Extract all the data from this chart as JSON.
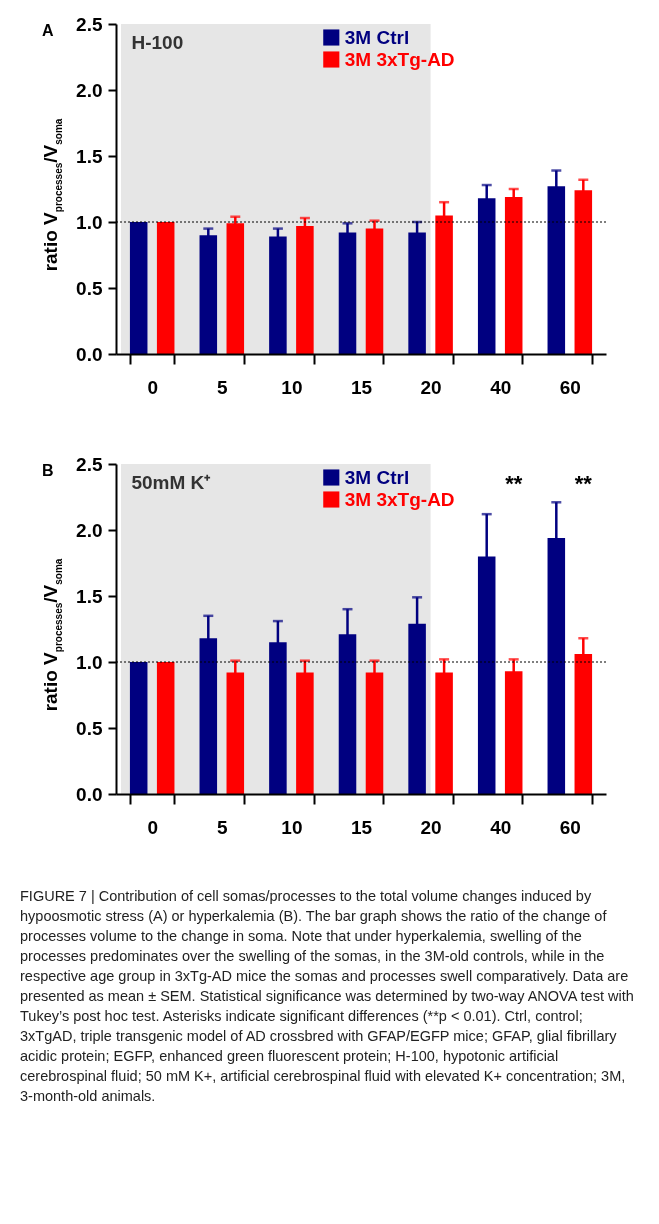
{
  "chart_data": [
    {
      "type": "bar",
      "ylabel": "ratio V$_{processes}$/V$_{soma}$",
      "annotations": [
        "A"
      ],
      "categories": [
        "0",
        "5",
        "10",
        "15",
        "20",
        "40",
        "60"
      ],
      "series": [
        {
          "name": "3M Ctrl",
          "color": "#000080",
          "values": [
            1.0,
            0.9,
            0.89,
            0.92,
            0.92,
            1.18,
            1.27
          ],
          "errors": [
            null,
            0.05,
            0.06,
            0.07,
            0.08,
            0.1,
            0.12
          ]
        },
        {
          "name": "3M 3xTg-AD",
          "color": "#ff0000",
          "values": [
            1.0,
            0.99,
            0.97,
            0.95,
            1.05,
            1.19,
            1.24
          ],
          "errors": [
            null,
            0.05,
            0.06,
            0.06,
            0.1,
            0.06,
            0.08
          ]
        }
      ],
      "ylim": [
        0,
        2.5
      ],
      "yticks": [
        {
          "value": 0,
          "label": "0.0"
        },
        {
          "value": 0.5,
          "label": "0.5"
        },
        {
          "value": 1,
          "label": "1.0"
        },
        {
          "value": 1.5,
          "label": "1.5"
        },
        {
          "value": 2,
          "label": "2.0"
        },
        {
          "value": 2.5,
          "label": "2.5"
        }
      ],
      "ref_lines": [
        {
          "axis": "y",
          "value": 1,
          "color": "#000000",
          "line_style": "dotted"
        }
      ],
      "bands": [
        {
          "axis": "x",
          "from": "0",
          "to": "20",
          "label": "H-100",
          "color": "#e6e6e6"
        }
      ],
      "legend": "top",
      "grid": false
    },
    {
      "type": "bar",
      "ylabel": "ratio V$_{processes}$/V$_{soma}$",
      "annotations": [
        "B",
        "**",
        "**",
        "FIGURE 7 | Contribution of cell somas/processes to the total volume changes induced by hypoosmotic stress (A) or hyperkalemia (B). The bar graph shows the ratio of the change of processes volume to the change in soma. Note that under hyperkalemia, swelling of the processes predominates over the swelling of the somas, in the 3M-old controls, while in the respective age group in 3xTg-AD mice the somas and processes swell comparatively. Data are presented as mean ± SEM. Statistical significance was determined by two-way ANOVA test with Tukey’s post hoc test. Asterisks indicate significant differences (**p < 0.01). Ctrl, control; 3xTgAD, triple transgenic model of AD crossbred with GFAP/EGFP mice; GFAP, glial fibrillary acidic protein; EGFP, enhanced green fluorescent protein; H-100, hypotonic artificial cerebrospinal fluid; 50 mM K+, artificial cerebrospinal fluid with elevated K+ concentration; 3M, 3-month-old animals."
      ],
      "categories": [
        "0",
        "5",
        "10",
        "15",
        "20",
        "40",
        "60"
      ],
      "series": [
        {
          "name": "3M Ctrl",
          "color": "#000080",
          "values": [
            1.0,
            1.18,
            1.15,
            1.21,
            1.29,
            1.8,
            1.94
          ],
          "errors": [
            null,
            0.17,
            0.16,
            0.19,
            0.2,
            0.32,
            0.27
          ]
        },
        {
          "name": "3M 3xTg-AD",
          "color": "#ff0000",
          "values": [
            1.0,
            0.92,
            0.92,
            0.92,
            0.92,
            0.93,
            1.06
          ],
          "errors": [
            null,
            0.09,
            0.09,
            0.09,
            0.1,
            0.09,
            0.12
          ]
        }
      ],
      "ylim": [
        0,
        2.5
      ],
      "yticks": [
        {
          "value": 0,
          "label": "0.0"
        },
        {
          "value": 0.5,
          "label": "0.5"
        },
        {
          "value": 1,
          "label": "1.0"
        },
        {
          "value": 1.5,
          "label": "1.5"
        },
        {
          "value": 2,
          "label": "2.0"
        },
        {
          "value": 2.5,
          "label": "2.5"
        }
      ],
      "ref_lines": [
        {
          "axis": "y",
          "value": 1,
          "color": "#000000",
          "line_style": "dotted"
        }
      ],
      "bands": [
        {
          "axis": "x",
          "from": "0",
          "to": "20",
          "label": "50mM K⁺",
          "color": "#e6e6e6"
        }
      ],
      "legend": "top",
      "grid": false
    }
  ]
}
